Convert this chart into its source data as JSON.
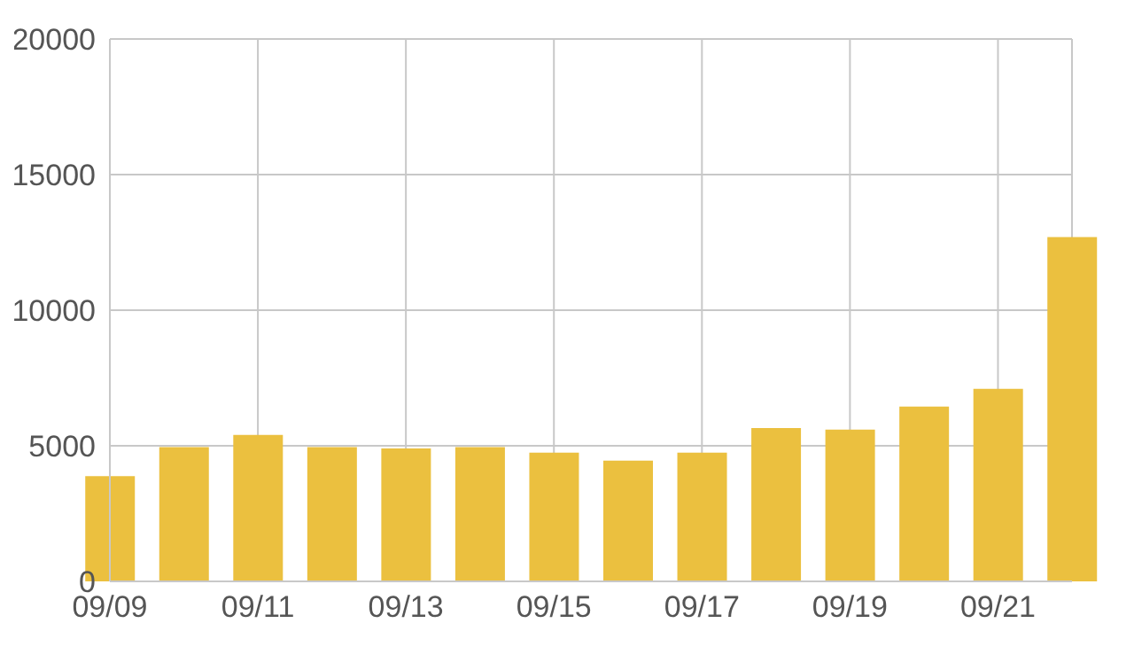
{
  "chart_data": {
    "type": "bar",
    "categories": [
      "09/09",
      null,
      "09/11",
      null,
      "09/13",
      null,
      "09/15",
      null,
      "09/17",
      null,
      "09/19",
      null,
      "09/21",
      null
    ],
    "values": [
      3880,
      4950,
      5400,
      4950,
      4900,
      4950,
      4750,
      4450,
      4750,
      5650,
      5600,
      6450,
      7100,
      12700
    ],
    "color": "#ebc03f",
    "ylim": [
      0,
      20000
    ],
    "yticks": [
      0,
      5000,
      10000,
      15000,
      20000
    ],
    "grid": true
  }
}
